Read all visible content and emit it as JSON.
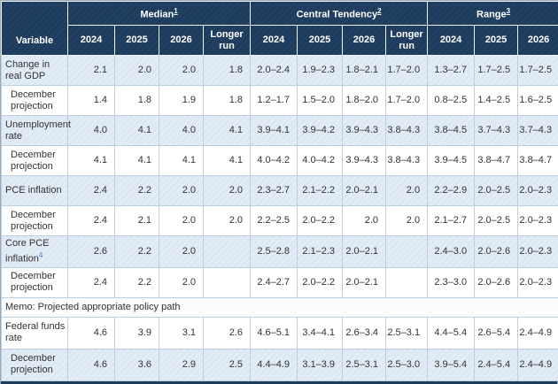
{
  "table": {
    "header": {
      "variable_label": "Variable",
      "groups": [
        {
          "label": "Median",
          "sup": "1",
          "cols": [
            "2024",
            "2025",
            "2026",
            "Longer run"
          ]
        },
        {
          "label": "Central Tendency",
          "sup": "2",
          "cols": [
            "2024",
            "2025",
            "2026",
            "Longer run"
          ]
        },
        {
          "label": "Range",
          "sup": "3",
          "cols": [
            "2024",
            "2025",
            "2026"
          ]
        }
      ]
    },
    "rows": [
      {
        "label": "Change in real GDP",
        "indent": false,
        "shade": true,
        "cells": [
          "2.1",
          "2.0",
          "2.0",
          "1.8",
          "2.0–2.4",
          "1.9–2.3",
          "1.8–2.1",
          "1.7–2.0",
          "1.3–2.7",
          "1.7–2.5",
          "1.7–2.5"
        ]
      },
      {
        "label": "December projection",
        "indent": true,
        "shade": false,
        "cells": [
          "1.4",
          "1.8",
          "1.9",
          "1.8",
          "1.2–1.7",
          "1.5–2.0",
          "1.8–2.0",
          "1.7–2.0",
          "0.8–2.5",
          "1.4–2.5",
          "1.6–2.5"
        ]
      },
      {
        "label": "Unemployment rate",
        "indent": false,
        "shade": true,
        "cells": [
          "4.0",
          "4.1",
          "4.0",
          "4.1",
          "3.9–4.1",
          "3.9–4.2",
          "3.9–4.3",
          "3.8–4.3",
          "3.8–4.5",
          "3.7–4.3",
          "3.7–4.3"
        ]
      },
      {
        "label": "December projection",
        "indent": true,
        "shade": false,
        "cells": [
          "4.1",
          "4.1",
          "4.1",
          "4.1",
          "4.0–4.2",
          "4.0–4.2",
          "3.9–4.3",
          "3.8–4.3",
          "3.9–4.5",
          "3.8–4.7",
          "3.8–4.7"
        ]
      },
      {
        "label": "PCE inflation",
        "indent": false,
        "shade": true,
        "cells": [
          "2.4",
          "2.2",
          "2.0",
          "2.0",
          "2.3–2.7",
          "2.1–2.2",
          "2.0–2.1",
          "2.0",
          "2.2–2.9",
          "2.0–2.5",
          "2.0–2.3"
        ]
      },
      {
        "label": "December projection",
        "indent": true,
        "shade": false,
        "cells": [
          "2.4",
          "2.1",
          "2.0",
          "2.0",
          "2.2–2.5",
          "2.0–2.2",
          "2.0",
          "2.0",
          "2.1–2.7",
          "2.0–2.5",
          "2.0–2.3"
        ]
      },
      {
        "label": "Core PCE inflation",
        "sup": "4",
        "indent": false,
        "shade": true,
        "cells": [
          "2.6",
          "2.2",
          "2.0",
          "",
          "2.5–2.8",
          "2.1–2.3",
          "2.0–2.1",
          "",
          "2.4–3.0",
          "2.0–2.6",
          "2.0–2.3"
        ]
      },
      {
        "label": "December projection",
        "indent": true,
        "shade": false,
        "cells": [
          "2.4",
          "2.2",
          "2.0",
          "",
          "2.4–2.7",
          "2.0–2.2",
          "2.0–2.1",
          "",
          "2.3–3.0",
          "2.0–2.6",
          "2.0–2.3"
        ]
      },
      {
        "memo": true,
        "label": "Memo: Projected appropriate policy path"
      },
      {
        "label": "Federal funds rate",
        "indent": false,
        "shade": false,
        "tall": true,
        "cells": [
          "4.6",
          "3.9",
          "3.1",
          "2.6",
          "4.6–5.1",
          "3.4–4.1",
          "2.6–3.4",
          "2.5–3.1",
          "4.4–5.4",
          "2.6–5.4",
          "2.4–4.9"
        ]
      },
      {
        "label": "December projection",
        "indent": true,
        "shade": true,
        "tall": true,
        "cells": [
          "4.6",
          "3.6",
          "2.9",
          "2.5",
          "4.4–4.9",
          "3.1–3.9",
          "2.5–3.1",
          "2.5–3.0",
          "3.9–5.4",
          "2.4–5.4",
          "2.4–4.9"
        ]
      }
    ],
    "colors": {
      "header_navy": "#1e3c5e",
      "shaded_row": "#dce8f3",
      "cell_border": "#bccfdf",
      "footnote_link": "#4a7eb5"
    }
  }
}
